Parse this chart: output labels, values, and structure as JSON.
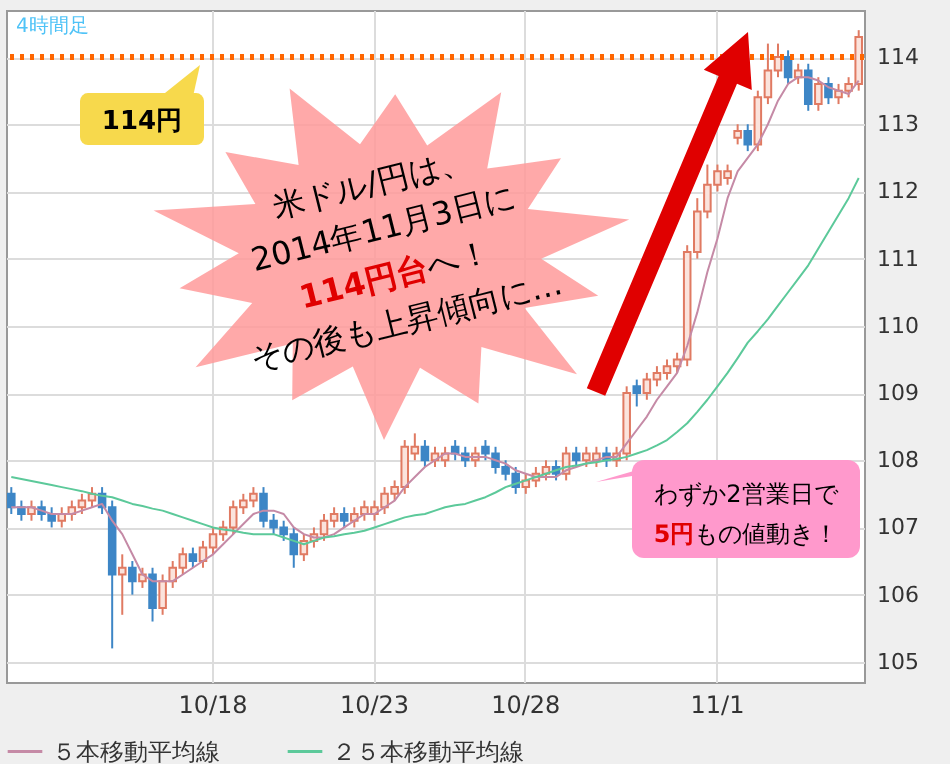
{
  "chart_data": {
    "type": "candlestick",
    "categories": [
      null,
      null,
      null,
      null,
      null,
      null,
      null,
      null,
      null,
      null,
      null,
      null,
      null,
      null,
      null,
      null,
      null,
      null,
      null,
      null,
      "10/18",
      null,
      null,
      null,
      null,
      null,
      null,
      null,
      null,
      null,
      null,
      null,
      null,
      null,
      null,
      null,
      "10/23",
      null,
      null,
      null,
      null,
      null,
      null,
      null,
      null,
      null,
      null,
      null,
      null,
      null,
      null,
      "10/28",
      null,
      null,
      null,
      null,
      null,
      null,
      null,
      null,
      null,
      null,
      null,
      null,
      null,
      null,
      null,
      null,
      null,
      null,
      "11/1",
      null,
      null,
      null,
      null,
      null,
      null,
      null,
      null,
      null,
      null,
      null,
      null,
      null,
      null
    ],
    "ohlc": [
      [
        107.5,
        107.6,
        107.2,
        107.3
      ],
      [
        107.3,
        107.4,
        107.1,
        107.2
      ],
      [
        107.2,
        107.4,
        107.1,
        107.3
      ],
      [
        107.3,
        107.4,
        107.1,
        107.2
      ],
      [
        107.2,
        107.3,
        107.0,
        107.1
      ],
      [
        107.1,
        107.3,
        107.0,
        107.2
      ],
      [
        107.2,
        107.4,
        107.1,
        107.3
      ],
      [
        107.3,
        107.5,
        107.2,
        107.4
      ],
      [
        107.4,
        107.6,
        107.3,
        107.5
      ],
      [
        107.5,
        107.6,
        107.2,
        107.3
      ],
      [
        107.3,
        107.4,
        105.2,
        106.3
      ],
      [
        106.3,
        106.6,
        105.7,
        106.4
      ],
      [
        106.4,
        106.5,
        106.0,
        106.2
      ],
      [
        106.2,
        106.4,
        106.1,
        106.3
      ],
      [
        106.3,
        106.4,
        105.6,
        105.8
      ],
      [
        105.8,
        106.3,
        105.7,
        106.2
      ],
      [
        106.2,
        106.5,
        106.1,
        106.4
      ],
      [
        106.4,
        106.7,
        106.3,
        106.6
      ],
      [
        106.6,
        106.7,
        106.4,
        106.5
      ],
      [
        106.5,
        106.8,
        106.4,
        106.7
      ],
      [
        106.7,
        107.0,
        106.6,
        106.9
      ],
      [
        106.9,
        107.1,
        106.8,
        107.0
      ],
      [
        107.0,
        107.4,
        106.9,
        107.3
      ],
      [
        107.3,
        107.5,
        107.2,
        107.4
      ],
      [
        107.4,
        107.6,
        107.3,
        107.5
      ],
      [
        107.5,
        107.6,
        107.0,
        107.1
      ],
      [
        107.1,
        107.2,
        106.9,
        107.0
      ],
      [
        107.0,
        107.1,
        106.8,
        106.9
      ],
      [
        106.9,
        107.0,
        106.4,
        106.6
      ],
      [
        106.6,
        106.9,
        106.5,
        106.8
      ],
      [
        106.8,
        107.0,
        106.7,
        106.9
      ],
      [
        106.9,
        107.2,
        106.8,
        107.1
      ],
      [
        107.1,
        107.3,
        107.0,
        107.2
      ],
      [
        107.2,
        107.3,
        107.0,
        107.1
      ],
      [
        107.1,
        107.3,
        107.0,
        107.2
      ],
      [
        107.2,
        107.4,
        107.1,
        107.3
      ],
      [
        107.2,
        107.4,
        107.1,
        107.3
      ],
      [
        107.3,
        107.6,
        107.2,
        107.5
      ],
      [
        107.5,
        107.7,
        107.4,
        107.6
      ],
      [
        107.6,
        108.3,
        107.5,
        108.2
      ],
      [
        108.1,
        108.4,
        108.0,
        108.2
      ],
      [
        108.2,
        108.3,
        107.9,
        108.0
      ],
      [
        108.0,
        108.2,
        107.9,
        108.1
      ],
      [
        108.0,
        108.2,
        107.9,
        108.1
      ],
      [
        108.2,
        108.3,
        108.0,
        108.1
      ],
      [
        108.1,
        108.2,
        107.9,
        108.0
      ],
      [
        108.0,
        108.2,
        107.9,
        108.1
      ],
      [
        108.2,
        108.3,
        108.0,
        108.1
      ],
      [
        108.1,
        108.2,
        107.8,
        107.9
      ],
      [
        107.9,
        108.0,
        107.7,
        107.8
      ],
      [
        107.8,
        107.9,
        107.5,
        107.6
      ],
      [
        107.6,
        107.8,
        107.5,
        107.7
      ],
      [
        107.7,
        107.9,
        107.6,
        107.8
      ],
      [
        107.8,
        108.0,
        107.7,
        107.9
      ],
      [
        107.9,
        108.0,
        107.7,
        107.8
      ],
      [
        107.8,
        108.2,
        107.7,
        108.1
      ],
      [
        108.1,
        108.2,
        107.9,
        108.0
      ],
      [
        108.0,
        108.2,
        107.9,
        108.1
      ],
      [
        108.0,
        108.2,
        107.9,
        108.1
      ],
      [
        108.1,
        108.2,
        107.9,
        108.0
      ],
      [
        108.0,
        108.2,
        107.9,
        108.1
      ],
      [
        108.1,
        109.1,
        108.0,
        109.0
      ],
      [
        109.1,
        109.2,
        108.8,
        109.0
      ],
      [
        109.0,
        109.3,
        108.9,
        109.2
      ],
      [
        109.2,
        109.4,
        109.1,
        109.3
      ],
      [
        109.3,
        109.5,
        109.2,
        109.4
      ],
      [
        109.4,
        109.6,
        109.3,
        109.5
      ],
      [
        109.5,
        111.2,
        109.4,
        111.1
      ],
      [
        111.1,
        111.9,
        111.0,
        111.7
      ],
      [
        111.7,
        112.4,
        111.6,
        112.1
      ],
      [
        112.1,
        112.4,
        112.0,
        112.3
      ],
      [
        112.2,
        112.4,
        112.1,
        112.3
      ],
      [
        112.8,
        113.0,
        112.7,
        112.9
      ],
      [
        112.9,
        113.0,
        112.6,
        112.7
      ],
      [
        112.7,
        113.5,
        112.6,
        113.4
      ],
      [
        113.4,
        114.2,
        113.3,
        113.8
      ],
      [
        113.8,
        114.2,
        113.7,
        114.0
      ],
      [
        114.0,
        114.1,
        113.6,
        113.7
      ],
      [
        113.7,
        113.9,
        113.6,
        113.8
      ],
      [
        113.8,
        113.9,
        113.2,
        113.3
      ],
      [
        113.3,
        113.7,
        113.2,
        113.6
      ],
      [
        113.6,
        113.7,
        113.3,
        113.4
      ],
      [
        113.4,
        113.6,
        113.3,
        113.5
      ],
      [
        113.5,
        113.7,
        113.4,
        113.6
      ],
      [
        113.6,
        114.4,
        113.5,
        114.3
      ]
    ],
    "series": [
      {
        "type": "line",
        "name": "５本移動平均線",
        "color": "#c58aa6",
        "values": [
          107.3,
          107.3,
          107.3,
          107.25,
          107.2,
          107.2,
          107.2,
          107.25,
          107.3,
          107.35,
          107.1,
          106.9,
          106.6,
          106.3,
          106.2,
          106.2,
          106.2,
          106.3,
          106.4,
          106.5,
          106.6,
          106.75,
          106.9,
          107.05,
          107.2,
          107.25,
          107.25,
          107.2,
          107.0,
          106.9,
          106.85,
          106.85,
          106.9,
          107.0,
          107.1,
          107.2,
          107.2,
          107.3,
          107.4,
          107.6,
          107.75,
          107.9,
          108.0,
          108.1,
          108.1,
          108.05,
          108.05,
          108.05,
          108.0,
          107.95,
          107.85,
          107.8,
          107.75,
          107.75,
          107.75,
          107.85,
          107.9,
          107.95,
          108.0,
          108.05,
          108.05,
          108.25,
          108.45,
          108.65,
          108.9,
          109.1,
          109.3,
          109.7,
          110.2,
          110.8,
          111.3,
          111.9,
          112.3,
          112.5,
          112.7,
          113.0,
          113.35,
          113.6,
          113.7,
          113.7,
          113.65,
          113.55,
          113.5,
          113.45,
          113.65
        ]
      },
      {
        "type": "line",
        "name": "２５本移動平均線",
        "color": "#5cc99a",
        "values": [
          107.75,
          107.72,
          107.69,
          107.66,
          107.63,
          107.6,
          107.57,
          107.54,
          107.5,
          107.47,
          107.45,
          107.4,
          107.35,
          107.32,
          107.28,
          107.25,
          107.2,
          107.15,
          107.1,
          107.05,
          107.0,
          106.97,
          106.95,
          106.92,
          106.9,
          106.9,
          106.9,
          106.85,
          106.8,
          106.75,
          106.8,
          106.85,
          106.87,
          106.9,
          106.92,
          106.95,
          107.0,
          107.05,
          107.1,
          107.15,
          107.18,
          107.2,
          107.25,
          107.3,
          107.33,
          107.35,
          107.4,
          107.45,
          107.52,
          107.6,
          107.65,
          107.7,
          107.75,
          107.8,
          107.85,
          107.9,
          107.92,
          107.95,
          107.97,
          108.0,
          108.02,
          108.05,
          108.1,
          108.15,
          108.22,
          108.3,
          108.42,
          108.55,
          108.72,
          108.9,
          109.1,
          109.3,
          109.52,
          109.75,
          109.92,
          110.1,
          110.3,
          110.5,
          110.7,
          110.9,
          111.15,
          111.4,
          111.65,
          111.9,
          112.2
        ]
      }
    ],
    "ylim": [
      104.7,
      114.7
    ],
    "yticks": [
      105,
      106,
      107,
      108,
      109,
      110,
      111,
      112,
      113,
      114
    ],
    "grid": true,
    "legend": "bottom",
    "ref_lines": [
      {
        "axis": "y",
        "value": 114,
        "label": "114円",
        "color": "#ff6600",
        "line_style": "dotted"
      }
    ],
    "annotations": [
      "4時間足",
      "米ドル/円は、",
      "2014年11月3日に",
      "114円台",
      "へ！",
      "その後も上昇傾向に…",
      "わずか2営業日で",
      "5円",
      "もの値動き！"
    ]
  }
}
